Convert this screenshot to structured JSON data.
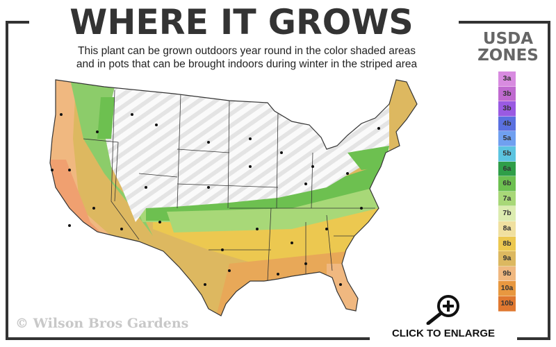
{
  "header": {
    "title": "WHERE IT GROWS",
    "subtitle_line1": "This plant can be grown outdoors year round in the color shaded areas",
    "subtitle_line2": "and in pots that can be brought indoors during winter in the striped area"
  },
  "legend": {
    "title_line1": "USDA",
    "title_line2": "ZONES",
    "zones": [
      {
        "label": "3a",
        "color": "#d88be0"
      },
      {
        "label": "3b",
        "color": "#c06ad0"
      },
      {
        "label": "3b",
        "color": "#9a5ae2"
      },
      {
        "label": "4b",
        "color": "#5a70e0"
      },
      {
        "label": "5a",
        "color": "#70a0f0"
      },
      {
        "label": "5b",
        "color": "#5cc4e0"
      },
      {
        "label": "6a",
        "color": "#2f9e48"
      },
      {
        "label": "6b",
        "color": "#6dc050"
      },
      {
        "label": "7a",
        "color": "#a8d878"
      },
      {
        "label": "7b",
        "color": "#dcecb0"
      },
      {
        "label": "8a",
        "color": "#f0e0a0"
      },
      {
        "label": "8b",
        "color": "#ecc850"
      },
      {
        "label": "9a",
        "color": "#dcb860"
      },
      {
        "label": "9b",
        "color": "#f0b880"
      },
      {
        "label": "10a",
        "color": "#e89840"
      },
      {
        "label": "10b",
        "color": "#e07830"
      }
    ]
  },
  "footer": {
    "watermark": "© Wilson Bros Gardens",
    "enlarge_label": "CLICK TO ENLARGE"
  },
  "icons": {
    "enlarge": "magnifier-plus-icon"
  }
}
